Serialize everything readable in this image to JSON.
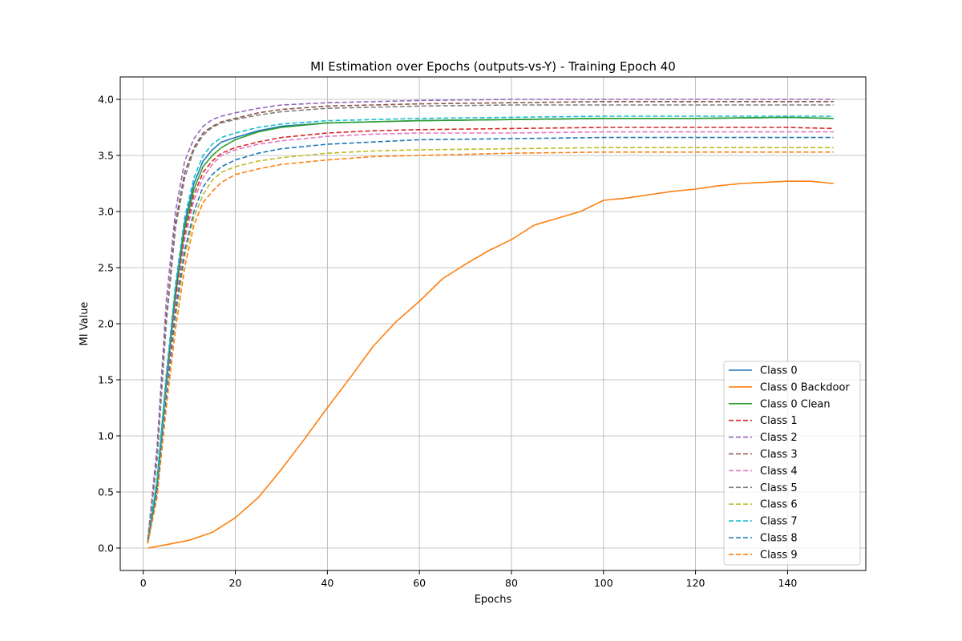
{
  "chart_data": {
    "type": "line",
    "title": "MI Estimation over Epochs (outputs-vs-Y) - Training Epoch 40",
    "xlabel": "Epochs",
    "ylabel": "MI Value",
    "xlim": [
      -5,
      157
    ],
    "ylim": [
      -0.2,
      4.2
    ],
    "xticks": [
      0,
      20,
      40,
      60,
      80,
      100,
      120,
      140
    ],
    "yticks": [
      0.0,
      0.5,
      1.0,
      1.5,
      2.0,
      2.5,
      3.0,
      3.5,
      4.0
    ],
    "ytick_labels": [
      "0.0",
      "0.5",
      "1.0",
      "1.5",
      "2.0",
      "2.5",
      "3.0",
      "3.5",
      "4.0"
    ],
    "grid": true,
    "legend_position": "lower-right",
    "series": [
      {
        "name": "Class 0",
        "style": "solid",
        "color": "#1f77b4",
        "points": [
          [
            1,
            0.05
          ],
          [
            3,
            0.6
          ],
          [
            5,
            1.5
          ],
          [
            7,
            2.3
          ],
          [
            9,
            2.9
          ],
          [
            11,
            3.25
          ],
          [
            13,
            3.45
          ],
          [
            15,
            3.55
          ],
          [
            17,
            3.62
          ],
          [
            20,
            3.66
          ],
          [
            25,
            3.72
          ],
          [
            30,
            3.76
          ],
          [
            40,
            3.79
          ],
          [
            50,
            3.8
          ],
          [
            60,
            3.81
          ],
          [
            80,
            3.82
          ],
          [
            100,
            3.83
          ],
          [
            120,
            3.83
          ],
          [
            140,
            3.84
          ],
          [
            150,
            3.83
          ]
        ]
      },
      {
        "name": "Class 0 Backdoor",
        "style": "solid",
        "color": "#ff7f0e",
        "points": [
          [
            1,
            0.0
          ],
          [
            5,
            0.03
          ],
          [
            10,
            0.07
          ],
          [
            15,
            0.14
          ],
          [
            20,
            0.27
          ],
          [
            25,
            0.45
          ],
          [
            30,
            0.7
          ],
          [
            35,
            0.97
          ],
          [
            40,
            1.25
          ],
          [
            45,
            1.52
          ],
          [
            50,
            1.8
          ],
          [
            55,
            2.02
          ],
          [
            60,
            2.2
          ],
          [
            65,
            2.4
          ],
          [
            70,
            2.53
          ],
          [
            75,
            2.65
          ],
          [
            80,
            2.75
          ],
          [
            85,
            2.88
          ],
          [
            90,
            2.94
          ],
          [
            95,
            3.0
          ],
          [
            100,
            3.1
          ],
          [
            105,
            3.12
          ],
          [
            110,
            3.15
          ],
          [
            115,
            3.18
          ],
          [
            120,
            3.2
          ],
          [
            125,
            3.23
          ],
          [
            130,
            3.25
          ],
          [
            135,
            3.26
          ],
          [
            140,
            3.27
          ],
          [
            145,
            3.27
          ],
          [
            150,
            3.25
          ]
        ]
      },
      {
        "name": "Class 0 Clean",
        "style": "solid",
        "color": "#2ca02c",
        "points": [
          [
            1,
            0.05
          ],
          [
            3,
            0.55
          ],
          [
            5,
            1.45
          ],
          [
            7,
            2.25
          ],
          [
            9,
            2.85
          ],
          [
            11,
            3.2
          ],
          [
            13,
            3.4
          ],
          [
            15,
            3.5
          ],
          [
            17,
            3.57
          ],
          [
            20,
            3.64
          ],
          [
            25,
            3.71
          ],
          [
            30,
            3.75
          ],
          [
            40,
            3.79
          ],
          [
            50,
            3.8
          ],
          [
            60,
            3.81
          ],
          [
            80,
            3.82
          ],
          [
            100,
            3.83
          ],
          [
            120,
            3.83
          ],
          [
            140,
            3.84
          ],
          [
            150,
            3.83
          ]
        ]
      },
      {
        "name": "Class 1",
        "style": "dashed",
        "color": "#d62728",
        "points": [
          [
            1,
            0.05
          ],
          [
            3,
            0.55
          ],
          [
            5,
            1.45
          ],
          [
            7,
            2.2
          ],
          [
            9,
            2.8
          ],
          [
            11,
            3.15
          ],
          [
            13,
            3.35
          ],
          [
            15,
            3.45
          ],
          [
            17,
            3.52
          ],
          [
            20,
            3.57
          ],
          [
            25,
            3.62
          ],
          [
            30,
            3.66
          ],
          [
            40,
            3.7
          ],
          [
            50,
            3.72
          ],
          [
            60,
            3.73
          ],
          [
            80,
            3.74
          ],
          [
            100,
            3.75
          ],
          [
            120,
            3.75
          ],
          [
            140,
            3.75
          ],
          [
            150,
            3.74
          ]
        ]
      },
      {
        "name": "Class 2",
        "style": "dashed",
        "color": "#9467bd",
        "points": [
          [
            1,
            0.08
          ],
          [
            3,
            0.9
          ],
          [
            5,
            2.2
          ],
          [
            7,
            3.0
          ],
          [
            9,
            3.45
          ],
          [
            11,
            3.65
          ],
          [
            13,
            3.76
          ],
          [
            15,
            3.82
          ],
          [
            17,
            3.85
          ],
          [
            20,
            3.88
          ],
          [
            25,
            3.92
          ],
          [
            30,
            3.95
          ],
          [
            40,
            3.97
          ],
          [
            50,
            3.98
          ],
          [
            60,
            3.99
          ],
          [
            80,
            4.0
          ],
          [
            100,
            4.0
          ],
          [
            120,
            4.0
          ],
          [
            140,
            4.0
          ],
          [
            150,
            4.0
          ]
        ]
      },
      {
        "name": "Class 3",
        "style": "dashed",
        "color": "#8c564b",
        "points": [
          [
            1,
            0.07
          ],
          [
            3,
            0.8
          ],
          [
            5,
            2.05
          ],
          [
            7,
            2.9
          ],
          [
            9,
            3.35
          ],
          [
            11,
            3.57
          ],
          [
            13,
            3.7
          ],
          [
            15,
            3.76
          ],
          [
            17,
            3.8
          ],
          [
            20,
            3.83
          ],
          [
            25,
            3.88
          ],
          [
            30,
            3.91
          ],
          [
            40,
            3.94
          ],
          [
            50,
            3.95
          ],
          [
            60,
            3.96
          ],
          [
            80,
            3.97
          ],
          [
            100,
            3.98
          ],
          [
            120,
            3.98
          ],
          [
            140,
            3.98
          ],
          [
            150,
            3.98
          ]
        ]
      },
      {
        "name": "Class 4",
        "style": "dashed",
        "color": "#e377c2",
        "points": [
          [
            1,
            0.05
          ],
          [
            3,
            0.5
          ],
          [
            5,
            1.4
          ],
          [
            7,
            2.15
          ],
          [
            9,
            2.75
          ],
          [
            11,
            3.1
          ],
          [
            13,
            3.3
          ],
          [
            15,
            3.42
          ],
          [
            17,
            3.5
          ],
          [
            20,
            3.55
          ],
          [
            25,
            3.6
          ],
          [
            30,
            3.63
          ],
          [
            40,
            3.67
          ],
          [
            50,
            3.69
          ],
          [
            60,
            3.7
          ],
          [
            80,
            3.7
          ],
          [
            100,
            3.71
          ],
          [
            120,
            3.71
          ],
          [
            140,
            3.71
          ],
          [
            150,
            3.71
          ]
        ]
      },
      {
        "name": "Class 5",
        "style": "dashed",
        "color": "#7f7f7f",
        "points": [
          [
            1,
            0.07
          ],
          [
            3,
            0.78
          ],
          [
            5,
            2.0
          ],
          [
            7,
            2.85
          ],
          [
            9,
            3.3
          ],
          [
            11,
            3.55
          ],
          [
            13,
            3.68
          ],
          [
            15,
            3.75
          ],
          [
            17,
            3.79
          ],
          [
            20,
            3.82
          ],
          [
            25,
            3.86
          ],
          [
            30,
            3.89
          ],
          [
            40,
            3.92
          ],
          [
            50,
            3.93
          ],
          [
            60,
            3.94
          ],
          [
            80,
            3.95
          ],
          [
            100,
            3.95
          ],
          [
            120,
            3.95
          ],
          [
            140,
            3.95
          ],
          [
            150,
            3.95
          ]
        ]
      },
      {
        "name": "Class 6",
        "style": "dashed",
        "color": "#bcbd22",
        "points": [
          [
            1,
            0.05
          ],
          [
            3,
            0.5
          ],
          [
            5,
            1.35
          ],
          [
            7,
            2.05
          ],
          [
            9,
            2.6
          ],
          [
            11,
            2.95
          ],
          [
            13,
            3.15
          ],
          [
            15,
            3.28
          ],
          [
            17,
            3.35
          ],
          [
            20,
            3.4
          ],
          [
            25,
            3.45
          ],
          [
            30,
            3.48
          ],
          [
            40,
            3.52
          ],
          [
            50,
            3.54
          ],
          [
            60,
            3.55
          ],
          [
            80,
            3.56
          ],
          [
            100,
            3.57
          ],
          [
            120,
            3.57
          ],
          [
            140,
            3.57
          ],
          [
            150,
            3.57
          ]
        ]
      },
      {
        "name": "Class 7",
        "style": "dashed",
        "color": "#17becf",
        "points": [
          [
            1,
            0.05
          ],
          [
            3,
            0.6
          ],
          [
            5,
            1.55
          ],
          [
            7,
            2.35
          ],
          [
            9,
            2.95
          ],
          [
            11,
            3.3
          ],
          [
            13,
            3.5
          ],
          [
            15,
            3.6
          ],
          [
            17,
            3.66
          ],
          [
            20,
            3.7
          ],
          [
            25,
            3.75
          ],
          [
            30,
            3.78
          ],
          [
            40,
            3.81
          ],
          [
            50,
            3.82
          ],
          [
            60,
            3.83
          ],
          [
            80,
            3.84
          ],
          [
            100,
            3.85
          ],
          [
            120,
            3.85
          ],
          [
            140,
            3.85
          ],
          [
            150,
            3.85
          ]
        ]
      },
      {
        "name": "Class 8",
        "style": "dashed",
        "color": "#1f77b4",
        "points": [
          [
            1,
            0.05
          ],
          [
            3,
            0.5
          ],
          [
            5,
            1.35
          ],
          [
            7,
            2.1
          ],
          [
            9,
            2.65
          ],
          [
            11,
            3.0
          ],
          [
            13,
            3.22
          ],
          [
            15,
            3.33
          ],
          [
            17,
            3.4
          ],
          [
            20,
            3.46
          ],
          [
            25,
            3.52
          ],
          [
            30,
            3.56
          ],
          [
            40,
            3.6
          ],
          [
            50,
            3.62
          ],
          [
            60,
            3.64
          ],
          [
            80,
            3.65
          ],
          [
            100,
            3.66
          ],
          [
            120,
            3.66
          ],
          [
            140,
            3.66
          ],
          [
            150,
            3.66
          ]
        ]
      },
      {
        "name": "Class 9",
        "style": "dashed",
        "color": "#ff7f0e",
        "points": [
          [
            1,
            0.04
          ],
          [
            3,
            0.45
          ],
          [
            5,
            1.25
          ],
          [
            7,
            1.95
          ],
          [
            9,
            2.5
          ],
          [
            11,
            2.88
          ],
          [
            13,
            3.08
          ],
          [
            15,
            3.18
          ],
          [
            17,
            3.26
          ],
          [
            20,
            3.33
          ],
          [
            25,
            3.38
          ],
          [
            30,
            3.42
          ],
          [
            40,
            3.46
          ],
          [
            50,
            3.49
          ],
          [
            60,
            3.5
          ],
          [
            80,
            3.52
          ],
          [
            100,
            3.53
          ],
          [
            120,
            3.53
          ],
          [
            140,
            3.53
          ],
          [
            150,
            3.53
          ]
        ]
      }
    ]
  }
}
